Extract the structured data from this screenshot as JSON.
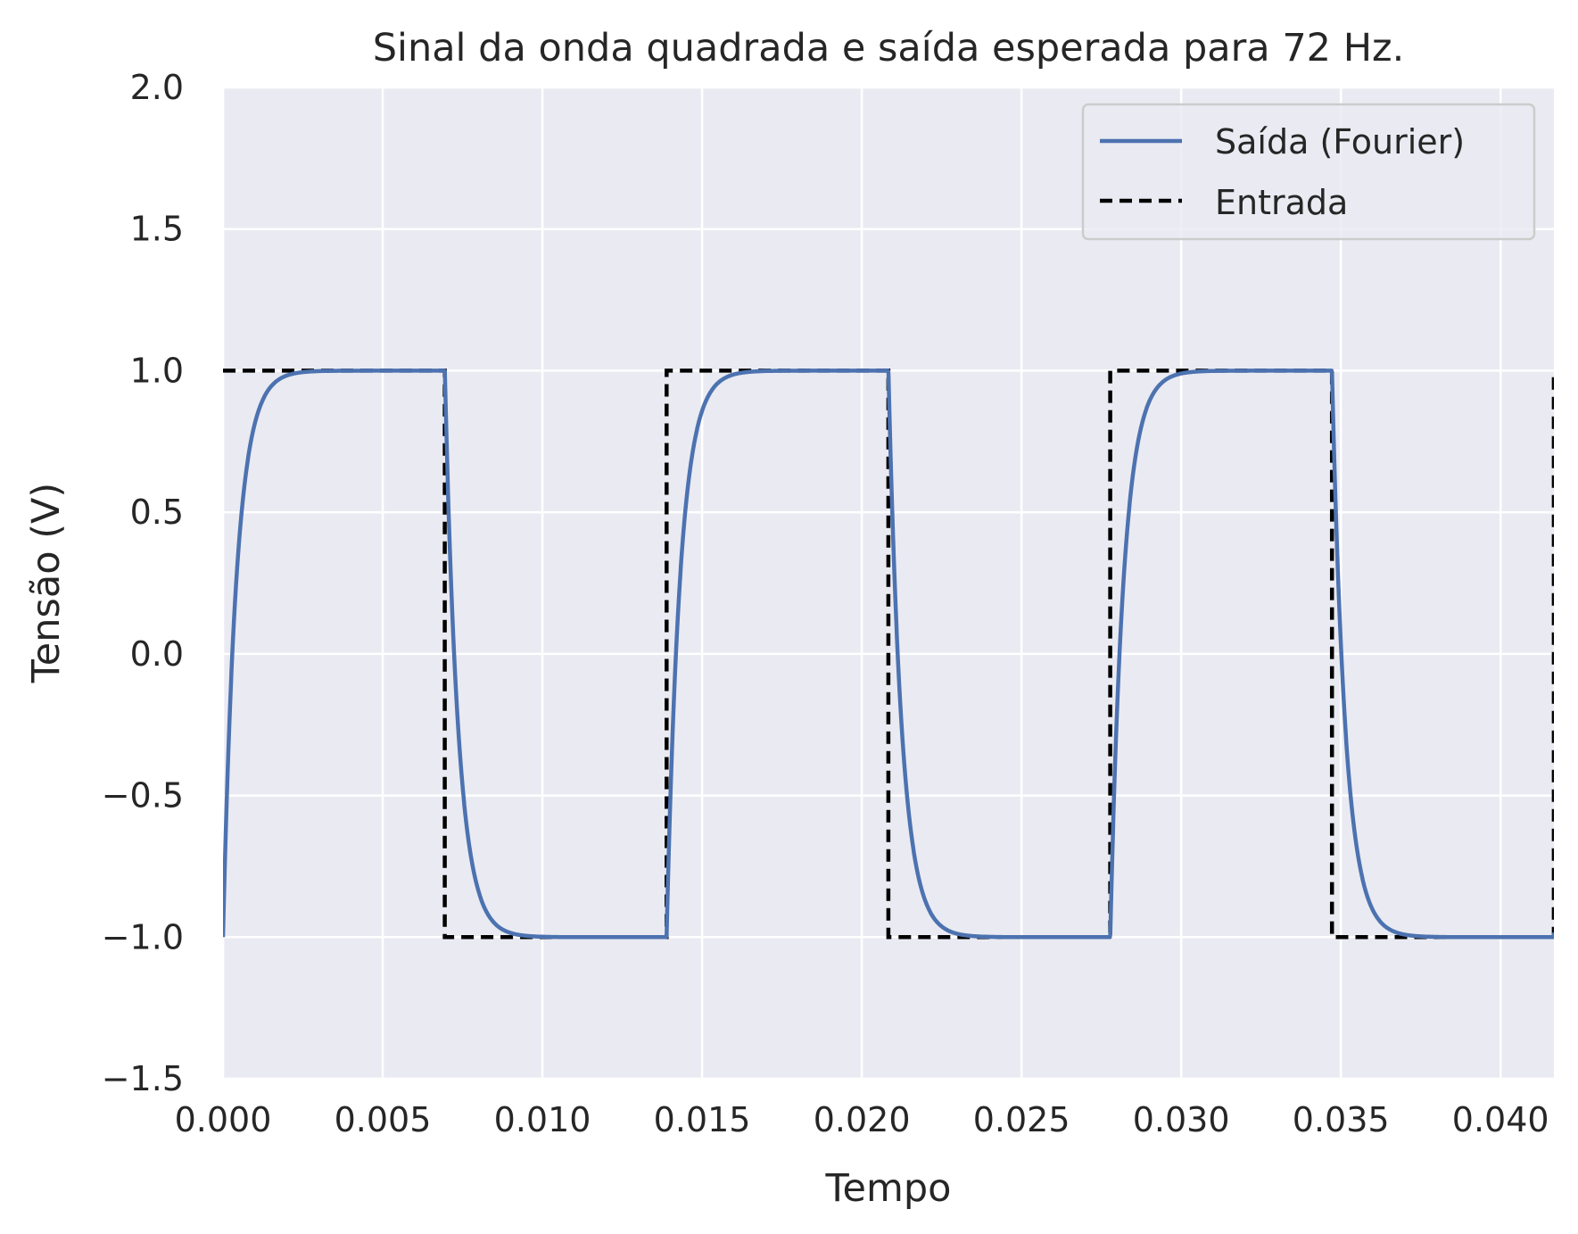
{
  "chart_data": {
    "type": "line",
    "title": "Sinal da onda quadrada e saída esperada para 72 Hz.",
    "xlabel": "Tempo",
    "ylabel": "Tensão (V)",
    "xlim": [
      0,
      0.04167
    ],
    "ylim": [
      -1.5,
      2.0
    ],
    "xticks": [
      0.0,
      0.005,
      0.01,
      0.015,
      0.02,
      0.025,
      0.03,
      0.035,
      0.04
    ],
    "xtick_labels": [
      "0.000",
      "0.005",
      "0.010",
      "0.015",
      "0.020",
      "0.025",
      "0.030",
      "0.035",
      "0.040"
    ],
    "yticks": [
      -1.5,
      -1.0,
      -0.5,
      0.0,
      0.5,
      1.0,
      1.5,
      2.0
    ],
    "ytick_labels": [
      "−1.5",
      "−1.0",
      "−0.5",
      "0.0",
      "0.5",
      "1.0",
      "1.5",
      "2.0"
    ],
    "grid": true,
    "legend_position": "top-right",
    "background_color": "#eaeaf2",
    "series": [
      {
        "name": "Saída (Fourier)",
        "style": "solid",
        "color": "#4c72b0",
        "frequency_hz": 72,
        "amplitude": 1.0,
        "time_constant_s": 0.00042
      },
      {
        "name": "Entrada",
        "style": "dashed",
        "color": "#000000",
        "frequency_hz": 72,
        "amplitude": 1.0
      }
    ]
  }
}
